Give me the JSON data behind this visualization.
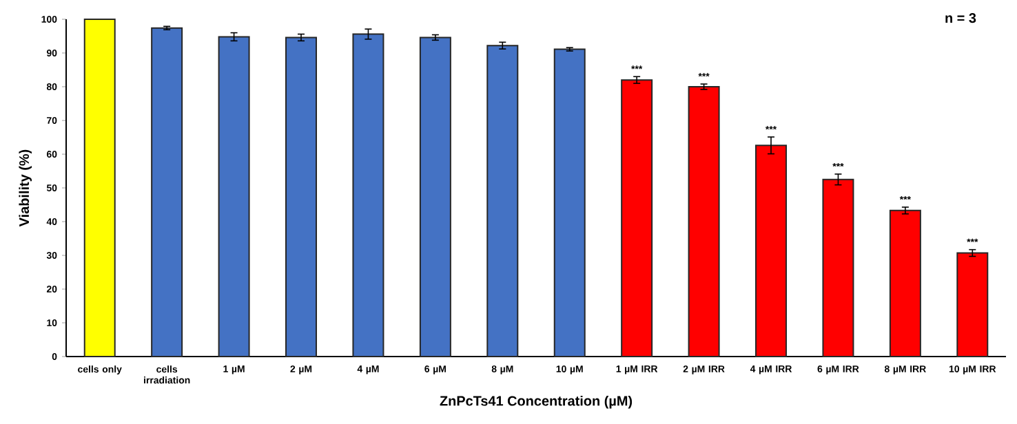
{
  "chart_data": {
    "type": "bar",
    "categories": [
      "cells only",
      "cells irradiation",
      "1 µM",
      "2 µM",
      "4 µM",
      "6 µM",
      "8 µM",
      "10 µM",
      "1 µM IRR",
      "2 µM IRR",
      "4 µM IRR",
      "6 µM IRR",
      "8 µM IRR",
      "10 µM IRR"
    ],
    "values": [
      100,
      97.4,
      94.8,
      94.6,
      95.6,
      94.6,
      92.2,
      91.1,
      82.0,
      80.0,
      62.6,
      52.5,
      43.3,
      30.7
    ],
    "errors": [
      null,
      0.5,
      1.2,
      1.0,
      1.5,
      0.8,
      1.0,
      0.5,
      1.0,
      0.8,
      2.5,
      1.6,
      1.0,
      1.0
    ],
    "colors": [
      "#ffff00",
      "#4472c4",
      "#4472c4",
      "#4472c4",
      "#4472c4",
      "#4472c4",
      "#4472c4",
      "#4472c4",
      "#ff0000",
      "#ff0000",
      "#ff0000",
      "#ff0000",
      "#ff0000",
      "#ff0000"
    ],
    "value_labels": [
      null,
      null,
      null,
      null,
      null,
      null,
      null,
      null,
      "***",
      "***",
      "***",
      "***",
      "***",
      "***"
    ],
    "xlabel": "ZnPcTs41 Concentration (µM)",
    "ylabel": "Viability (%)",
    "ylim": [
      0,
      100
    ],
    "yticks": [
      0,
      10,
      20,
      30,
      40,
      50,
      60,
      70,
      80,
      90,
      100
    ],
    "annotations": [
      "n = 3"
    ],
    "grid": false
  }
}
